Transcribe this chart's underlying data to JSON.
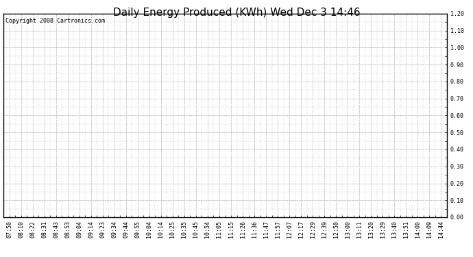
{
  "title": "Daily Energy Produced (KWh) Wed Dec 3 14:46",
  "copyright_text": "Copyright 2008 Cartronics.com",
  "x_labels": [
    "07:50",
    "08:10",
    "08:22",
    "08:31",
    "08:43",
    "08:53",
    "09:04",
    "09:14",
    "09:23",
    "09:34",
    "09:44",
    "09:55",
    "10:04",
    "10:14",
    "10:25",
    "10:35",
    "10:45",
    "10:54",
    "11:05",
    "11:15",
    "11:26",
    "11:36",
    "11:47",
    "11:57",
    "12:07",
    "12:17",
    "12:29",
    "12:39",
    "12:50",
    "13:00",
    "13:11",
    "13:20",
    "13:29",
    "13:40",
    "13:51",
    "14:00",
    "14:09",
    "14:44"
  ],
  "y_min": 0.0,
  "y_max": 1.2,
  "y_ticks": [
    0.0,
    0.1,
    0.2,
    0.3,
    0.4,
    0.5,
    0.6,
    0.7,
    0.8,
    0.9,
    1.0,
    1.1,
    1.2
  ],
  "background_color": "#ffffff",
  "plot_background_color": "#ffffff",
  "grid_color": "#aaaaaa",
  "grid_style": "--",
  "border_color": "#000000",
  "title_fontsize": 11,
  "copyright_fontsize": 6,
  "tick_fontsize": 6,
  "y_tick_labels": [
    "0.00",
    "0.10",
    "0.20",
    "0.30",
    "0.40",
    "0.50",
    "0.60",
    "0.70",
    "0.80",
    "0.90",
    "1.00",
    "1.10",
    "1.20"
  ]
}
